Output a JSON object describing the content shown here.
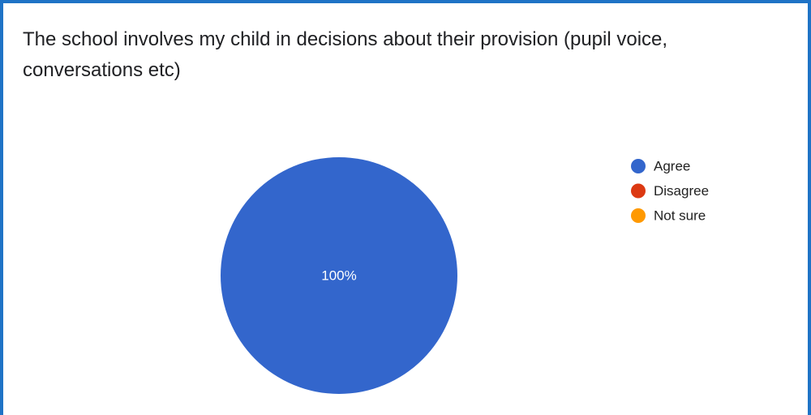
{
  "question": {
    "title": "The school involves my child in decisions about their provision (pupil voice, conversations etc)"
  },
  "chart_data": {
    "type": "pie",
    "title": "The school involves my child in decisions about their provision (pupil voice, conversations etc)",
    "categories": [
      "Agree",
      "Disagree",
      "Not sure"
    ],
    "values": [
      100,
      0,
      0
    ],
    "unit": "%",
    "colors": [
      "#3366cc",
      "#dc3912",
      "#ff9900"
    ],
    "slice_labels": [
      "100%"
    ],
    "legend_position": "right",
    "legend": [
      {
        "label": "Agree",
        "color": "#3366cc"
      },
      {
        "label": "Disagree",
        "color": "#dc3912"
      },
      {
        "label": "Not sure",
        "color": "#ff9900"
      }
    ]
  }
}
